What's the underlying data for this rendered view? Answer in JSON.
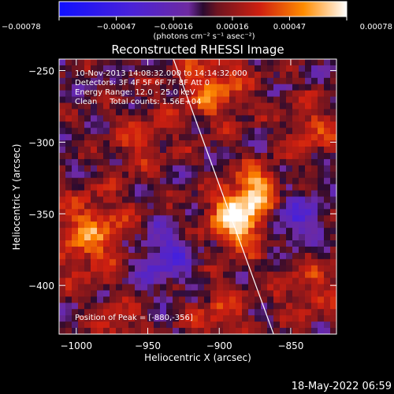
{
  "chart_data": {
    "type": "heatmap",
    "title": "Reconstructed RHESSI Image",
    "xlabel": "Heliocentric X (arcsec)",
    "ylabel": "Heliocentric Y (arcsec)",
    "xlim": [
      -1012,
      -818
    ],
    "ylim": [
      -434,
      -242
    ],
    "xticks": [
      -1000,
      -950,
      -900,
      -850
    ],
    "xtick_labels": [
      "−1000",
      "−950",
      "−900",
      "−850"
    ],
    "yticks": [
      -250,
      -300,
      -350,
      -400
    ],
    "ytick_labels": [
      "−250",
      "−300",
      "−350",
      "−400"
    ],
    "colorbar": {
      "ticks": [
        -0.00078,
        -0.00047,
        -0.00016,
        0.00016,
        0.00047,
        0.00078
      ],
      "tick_labels": [
        "−0.00078",
        "−0.00047",
        "−0.00016",
        "0.00016",
        "0.00047",
        "0.00078"
      ],
      "units": "(photons cm⁻² s⁻¹ asec⁻²)",
      "range": [
        -0.00078,
        0.00078
      ]
    },
    "annotations": [
      "10-Nov-2013 14:08:32.000 to 14:14:32.000",
      "Detectors: 3F 4F 5F 6F 7F 8F Att 0",
      "Energy Range: 12.0 - 25.0 keV",
      "Clean     Total counts: 1.56E+04"
    ],
    "peak_label": "Position of Peak = [-880,-356]",
    "peak": [
      -880,
      -356
    ],
    "limb": [
      [
        -932,
        -242
      ],
      [
        -862,
        -434
      ]
    ],
    "sources": [
      {
        "x": -885,
        "y": -352,
        "sigma": 15,
        "amp": 1.0
      },
      {
        "x": -872,
        "y": -330,
        "sigma": 10,
        "amp": 0.55
      },
      {
        "x": -990,
        "y": -365,
        "sigma": 20,
        "amp": 0.55
      },
      {
        "x": -905,
        "y": -262,
        "sigma": 18,
        "amp": 0.5
      },
      {
        "x": -955,
        "y": -300,
        "sigma": 15,
        "amp": 0.3
      },
      {
        "x": -835,
        "y": -290,
        "sigma": 15,
        "amp": 0.35
      },
      {
        "x": -835,
        "y": -400,
        "sigma": 18,
        "amp": 0.3
      },
      {
        "x": -900,
        "y": -420,
        "sigma": 14,
        "amp": 0.35
      },
      {
        "x": -970,
        "y": -430,
        "sigma": 12,
        "amp": 0.35
      },
      {
        "x": -940,
        "y": -380,
        "sigma": 15,
        "amp": -0.4
      },
      {
        "x": -850,
        "y": -355,
        "sigma": 14,
        "amp": -0.45
      }
    ]
  },
  "footer": {
    "timestamp": "18-May-2022 06:59"
  }
}
